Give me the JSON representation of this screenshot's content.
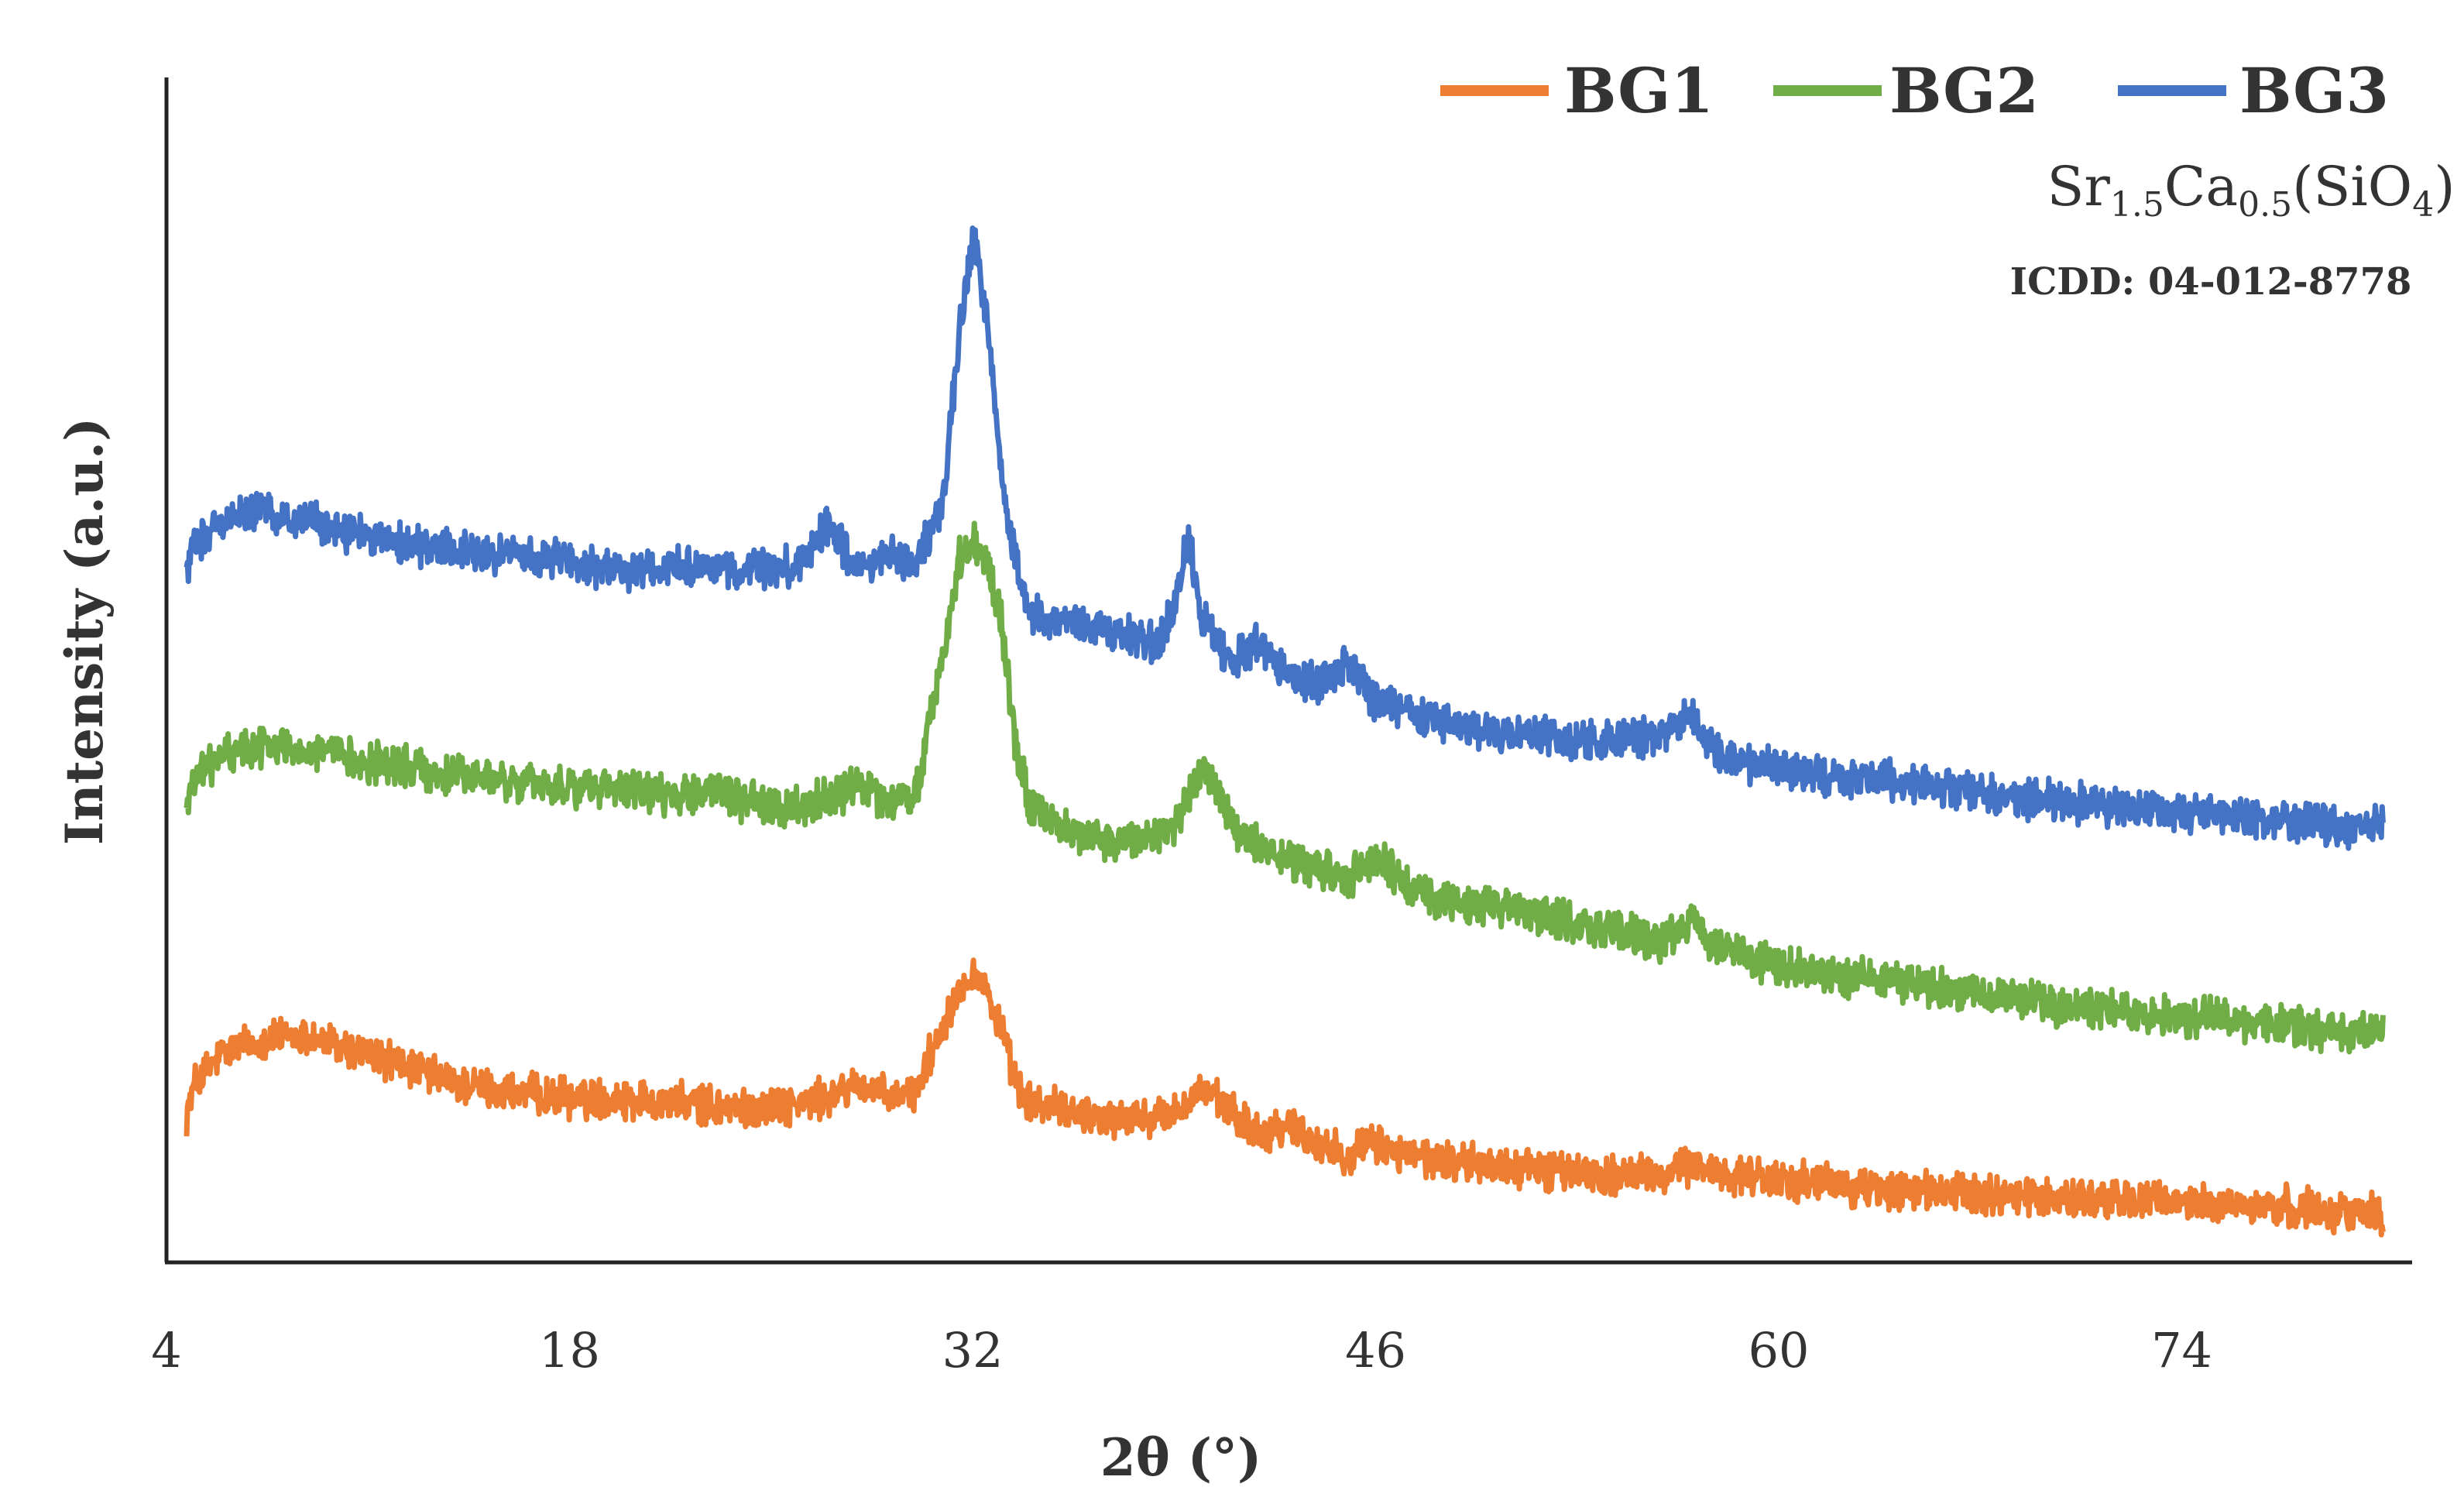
{
  "chart_data": {
    "type": "line",
    "xlabel": "2θ (°)",
    "ylabel": "Intensity (a.u.)",
    "xlim": [
      4,
      82
    ],
    "x_ticks": [
      4,
      18,
      32,
      46,
      60,
      74
    ],
    "y_ticks_shown": false,
    "legend_position": "top-right",
    "annotation": {
      "formula": {
        "base1": "Sr",
        "sub1": "1.5",
        "base2": "Ca",
        "sub2": "0.5",
        "base3": "(SiO",
        "sub3": "4",
        "tail": ")"
      },
      "icdd": "ICDD: 04-012-8778"
    },
    "series": [
      {
        "name": "BG1",
        "color": "#ED7D31",
        "x": [
          4.7,
          5,
          6,
          7,
          8,
          9,
          10,
          12,
          14,
          16,
          18,
          20,
          22,
          24,
          26,
          27,
          28,
          29,
          30,
          31,
          31.5,
          32,
          32.5,
          33,
          33.5,
          34,
          35,
          36,
          37,
          38,
          39,
          40,
          41,
          42,
          43,
          44,
          45,
          46,
          47,
          48,
          50,
          52,
          54,
          56,
          57,
          58,
          60,
          62,
          64,
          66,
          68,
          70,
          72,
          74,
          76,
          78,
          80,
          81
        ],
        "y": [
          10,
          13,
          16,
          17,
          17.5,
          17.5,
          16.5,
          15,
          13,
          12,
          11.5,
          11.5,
          11,
          10.5,
          11,
          11.5,
          13,
          11.5,
          12,
          19,
          22,
          24,
          22,
          18,
          13,
          11,
          10.5,
          10,
          9.5,
          9.5,
          10,
          12.5,
          10,
          8,
          9,
          7,
          6,
          7,
          6,
          5.5,
          5,
          4.5,
          4,
          4,
          5,
          4.2,
          3.5,
          3,
          2.5,
          2.3,
          2,
          1.8,
          1.5,
          1.3,
          1,
          0.8,
          0.5,
          0.2
        ]
      },
      {
        "name": "BG2",
        "color": "#70AD47",
        "x": [
          4.7,
          5,
          6,
          7,
          8,
          9,
          10,
          12,
          14,
          16,
          18,
          20,
          22,
          23,
          24,
          26,
          27,
          28,
          29,
          30,
          30.5,
          31,
          31.5,
          32,
          32.5,
          33,
          33.5,
          34,
          35,
          36,
          37,
          38,
          39,
          40,
          41,
          42,
          43,
          44,
          45,
          46,
          47,
          48,
          50,
          52,
          54,
          56,
          57,
          58,
          60,
          62,
          64,
          66,
          68,
          70,
          72,
          74,
          76,
          78,
          80,
          81
        ],
        "y": [
          40,
          43,
          45,
          46,
          46,
          45.5,
          45,
          44,
          43,
          42.5,
          42,
          41.5,
          41,
          42,
          40.5,
          40,
          41,
          42,
          40.5,
          41,
          48,
          55,
          64,
          66,
          64,
          58,
          46,
          40,
          38,
          37,
          36.5,
          37,
          38,
          44,
          38,
          36,
          35,
          34,
          33,
          35,
          32.5,
          31,
          30,
          29.5,
          28,
          27,
          29,
          26,
          24.5,
          23.5,
          23,
          22,
          21.5,
          20.5,
          20,
          19.5,
          19,
          18.5,
          18,
          18
        ]
      },
      {
        "name": "BG3",
        "color": "#4472C4",
        "x": [
          4.7,
          5,
          6,
          7,
          8,
          9,
          10,
          12,
          14,
          16,
          18,
          20,
          22,
          24,
          26,
          27,
          28,
          29,
          30,
          31,
          31.5,
          32,
          32.5,
          33,
          33.5,
          34,
          35,
          36,
          37,
          38,
          38.5,
          39,
          39.5,
          40,
          41,
          42,
          43,
          44,
          45,
          46,
          47,
          48,
          50,
          52,
          54,
          56,
          57,
          58,
          60,
          62,
          64,
          66,
          68,
          70,
          72,
          74,
          76,
          78,
          80,
          81
        ],
        "y": [
          63,
          66,
          68,
          69,
          68.5,
          68,
          67,
          66,
          65,
          64.5,
          64,
          63,
          63.5,
          63,
          63.5,
          68,
          63,
          65,
          63.5,
          70,
          85,
          96,
          88,
          72,
          64,
          59,
          58,
          57.5,
          57,
          56.5,
          56,
          60,
          66,
          58,
          54.5,
          56,
          53,
          52,
          54,
          50,
          49.5,
          48.5,
          47.5,
          47,
          46.5,
          47,
          49,
          45,
          43.5,
          43,
          42.5,
          42,
          41,
          40.5,
          40,
          39.5,
          39,
          38.5,
          38,
          38
        ]
      }
    ]
  }
}
